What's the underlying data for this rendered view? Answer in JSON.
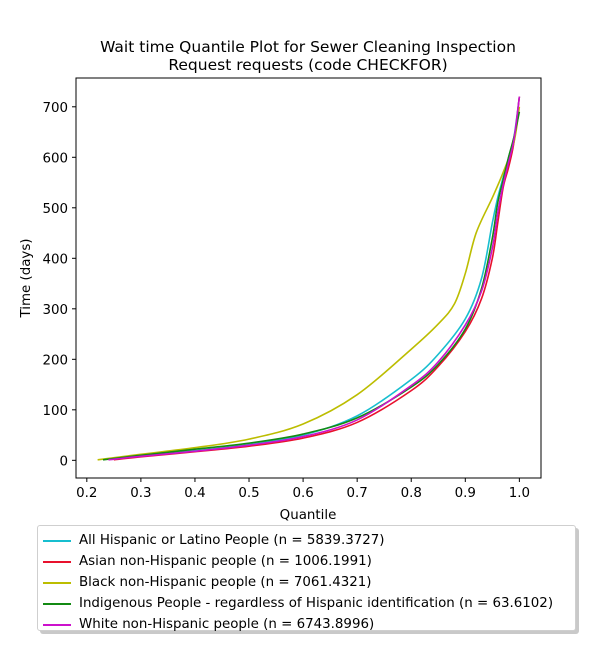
{
  "chart_data": {
    "type": "line",
    "title": "Wait time Quantile Plot for Sewer Cleaning Inspection\nRequest  requests (code CHECKFOR)",
    "xlabel": "Quantile",
    "ylabel": "Time (days)",
    "xlim": [
      0.18,
      1.04
    ],
    "ylim": [
      -35,
      757
    ],
    "xticks": [
      0.2,
      0.3,
      0.4,
      0.5,
      0.6,
      0.7,
      0.8,
      0.9,
      1.0
    ],
    "xtick_labels": [
      "0.2",
      "0.3",
      "0.4",
      "0.5",
      "0.6",
      "0.7",
      "0.8",
      "0.9",
      "1.0"
    ],
    "yticks": [
      0,
      100,
      200,
      300,
      400,
      500,
      600,
      700
    ],
    "ytick_labels": [
      "0",
      "100",
      "200",
      "300",
      "400",
      "500",
      "600",
      "700"
    ],
    "grid": false,
    "legend_placement": "below",
    "series": [
      {
        "name": "All Hispanic or Latino People (n = 5839.3727)",
        "color": "#17becf",
        "x": [
          0.24,
          0.3,
          0.4,
          0.5,
          0.6,
          0.7,
          0.8,
          0.85,
          0.9,
          0.93,
          0.95,
          0.96,
          0.97,
          0.98,
          0.99,
          1.0
        ],
        "y": [
          2,
          9,
          19,
          31,
          50,
          88,
          160,
          210,
          280,
          360,
          470,
          520,
          560,
          600,
          640,
          720
        ]
      },
      {
        "name": "Asian non-Hispanic people (n = 1006.1991)",
        "color": "#e8112d",
        "x": [
          0.25,
          0.3,
          0.4,
          0.5,
          0.6,
          0.7,
          0.8,
          0.85,
          0.9,
          0.93,
          0.95,
          0.96,
          0.97,
          0.98,
          0.99,
          1.0
        ],
        "y": [
          1,
          7,
          17,
          28,
          44,
          75,
          138,
          186,
          255,
          320,
          400,
          470,
          540,
          580,
          630,
          720
        ]
      },
      {
        "name": "Black non-Hispanic people (n = 7061.4321)",
        "color": "#bcbd00",
        "x": [
          0.22,
          0.3,
          0.4,
          0.5,
          0.6,
          0.7,
          0.8,
          0.85,
          0.88,
          0.9,
          0.92,
          0.95,
          0.97,
          0.99,
          1.0
        ],
        "y": [
          1,
          12,
          25,
          42,
          72,
          130,
          220,
          270,
          310,
          370,
          450,
          520,
          570,
          630,
          700
        ]
      },
      {
        "name": "Indigenous People - regardless of Hispanic identification (n = 63.6102)",
        "color": "#138a13",
        "x": [
          0.23,
          0.3,
          0.4,
          0.5,
          0.6,
          0.7,
          0.8,
          0.85,
          0.9,
          0.93,
          0.95,
          0.96,
          0.97,
          0.98,
          0.99,
          1.0
        ],
        "y": [
          1,
          10,
          22,
          34,
          52,
          84,
          145,
          190,
          260,
          340,
          440,
          510,
          555,
          600,
          640,
          690
        ]
      },
      {
        "name": "White non-Hispanic people (n = 6743.8996)",
        "color": "#cc11cc",
        "x": [
          0.24,
          0.3,
          0.4,
          0.5,
          0.6,
          0.7,
          0.8,
          0.85,
          0.9,
          0.93,
          0.95,
          0.96,
          0.97,
          0.98,
          0.99,
          1.0
        ],
        "y": [
          1,
          8,
          18,
          30,
          47,
          80,
          148,
          195,
          268,
          335,
          420,
          490,
          545,
          590,
          635,
          720
        ]
      }
    ]
  }
}
